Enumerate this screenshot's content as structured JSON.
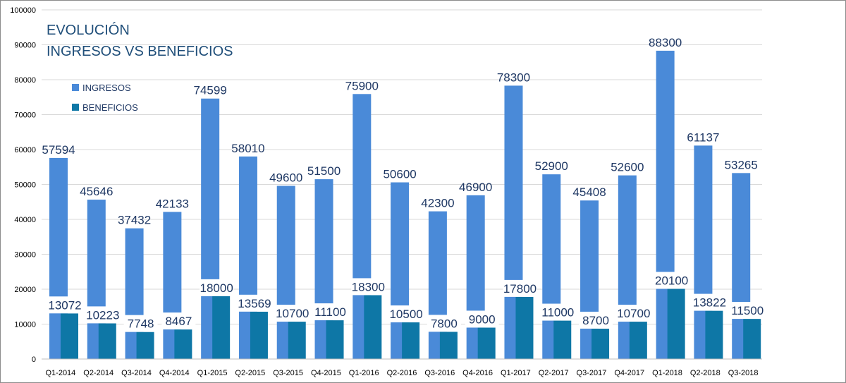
{
  "chart_data": {
    "type": "bar",
    "title": "EVOLUCIÓN",
    "subtitle": "INGRESOS VS BENEFICIOS",
    "xlabel": "",
    "ylabel": "",
    "ylim": [
      0,
      100000
    ],
    "yticks": [
      0,
      10000,
      20000,
      30000,
      40000,
      50000,
      60000,
      70000,
      80000,
      90000,
      100000
    ],
    "grid": true,
    "legend_position": "top-left",
    "categories": [
      "Q1-2014",
      "Q2-2014",
      "Q3-2014",
      "Q4-2014",
      "Q1-2015",
      "Q2-2015",
      "Q3-2015",
      "Q4-2015",
      "Q1-2016",
      "Q2-2016",
      "Q3-2016",
      "Q4-2016",
      "Q1-2017",
      "Q2-2017",
      "Q3-2017",
      "Q4-2017",
      "Q1-2018",
      "Q2-2018",
      "Q3-2018"
    ],
    "series": [
      {
        "name": "INGRESOS",
        "color": "#4a8ad8",
        "values": [
          57594,
          45646,
          37432,
          42133,
          74599,
          58010,
          49600,
          51500,
          75900,
          50600,
          42300,
          46900,
          78300,
          52900,
          45408,
          52600,
          88300,
          61137,
          53265
        ]
      },
      {
        "name": "BENEFICIOS",
        "color": "#0e77a6",
        "values": [
          13072,
          10223,
          7748,
          8467,
          18000,
          13569,
          10700,
          11100,
          18300,
          10500,
          7800,
          9000,
          17800,
          11000,
          8700,
          10700,
          20100,
          13822,
          11500
        ]
      }
    ]
  }
}
